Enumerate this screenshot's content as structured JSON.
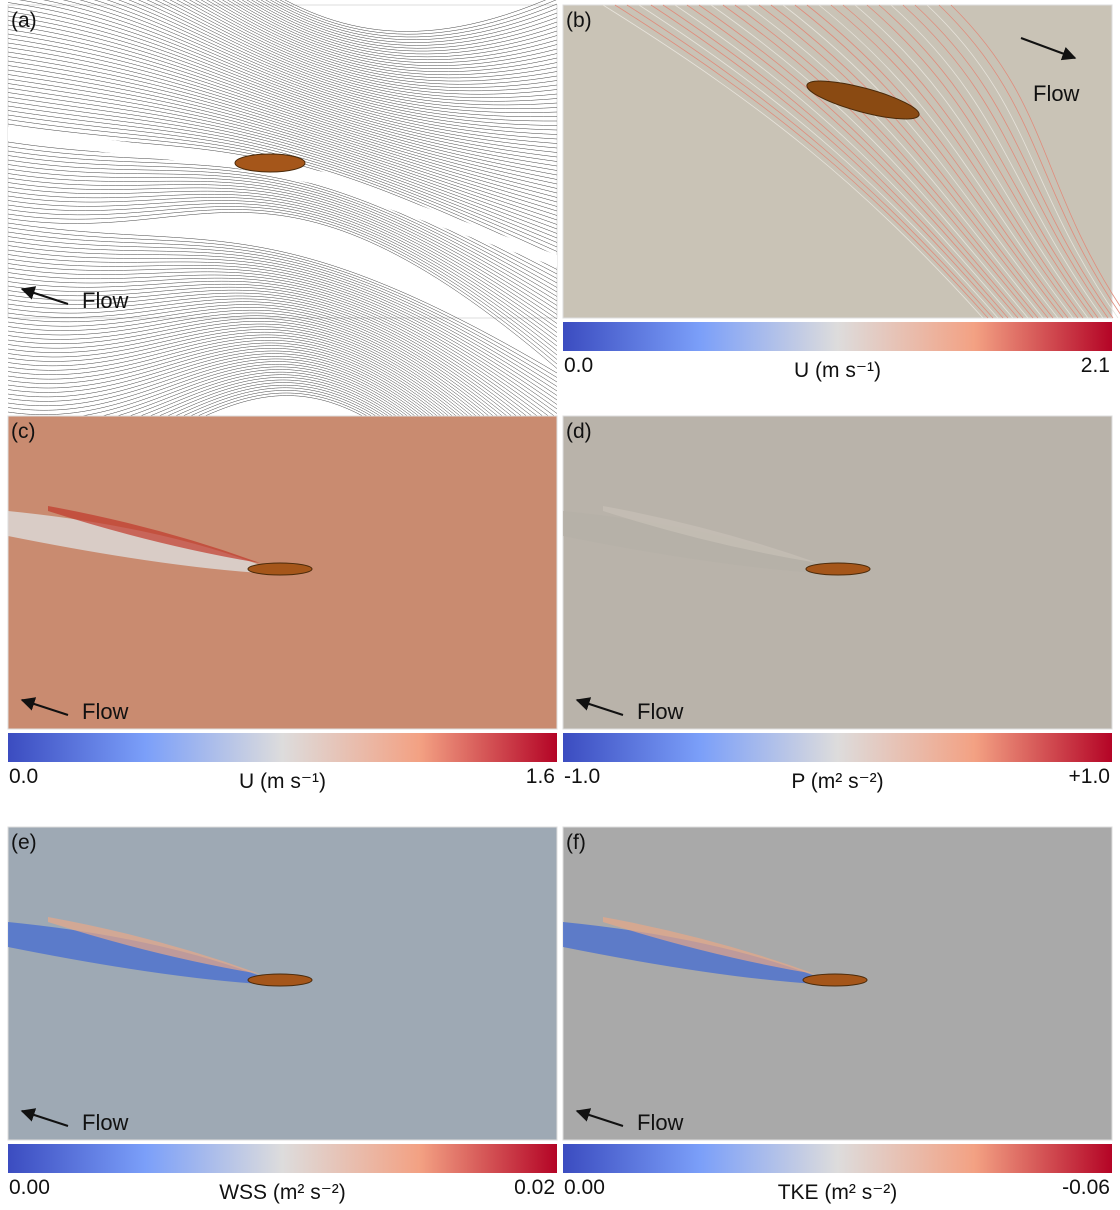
{
  "panels": [
    {
      "label": "(a)",
      "flow": "Flow"
    },
    {
      "label": "(b)",
      "flow": "Flow",
      "colorbar": {
        "min": "0.0",
        "title": "U (m s⁻¹)",
        "max": "2.1"
      }
    },
    {
      "label": "(c)",
      "flow": "Flow",
      "colorbar": {
        "min": "0.0",
        "title": "U (m s⁻¹)",
        "max": "1.6"
      }
    },
    {
      "label": "(d)",
      "flow": "Flow",
      "colorbar": {
        "min": "-1.0",
        "title": "P (m² s⁻²)",
        "max": "+1.0"
      }
    },
    {
      "label": "(e)",
      "flow": "Flow",
      "colorbar": {
        "min": "0.00",
        "title": "WSS (m² s⁻²)",
        "max": "0.02"
      }
    },
    {
      "label": "(f)",
      "flow": "Flow",
      "colorbar": {
        "min": "0.00",
        "title": "TKE (m² s⁻²)",
        "max": "-0.06"
      }
    }
  ]
}
